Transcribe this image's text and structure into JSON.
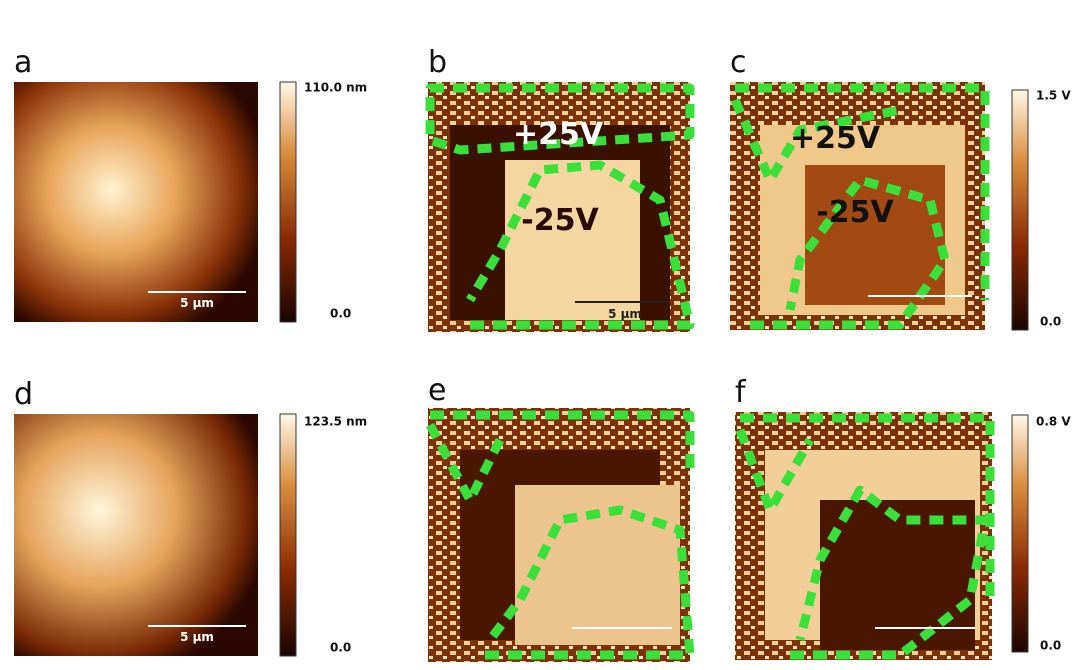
{
  "panels": [
    {
      "label": "a",
      "scale_bar": "5 µm"
    },
    {
      "label": "b",
      "scale_bar": "5 µm",
      "annotations": [
        "+25V",
        "-25V"
      ]
    },
    {
      "label": "c",
      "annotations": [
        "+25V",
        "-25V"
      ]
    },
    {
      "label": "d",
      "scale_bar": "5 µm"
    },
    {
      "label": "e"
    },
    {
      "label": "f"
    }
  ],
  "colorbars": [
    {
      "max": "110.0 nm",
      "min": "0.0"
    },
    {
      "max": "1.5 V",
      "min": "0.0"
    },
    {
      "max": "123.5 nm",
      "min": "0.0"
    },
    {
      "max": "0.8 V",
      "min": "0.0"
    }
  ]
}
